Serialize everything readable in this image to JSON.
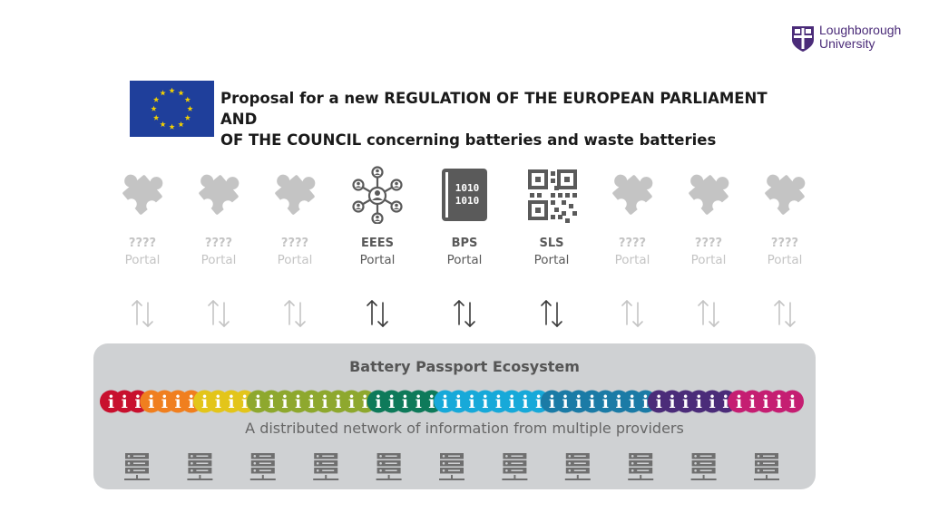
{
  "logo": {
    "line1": "Loughborough",
    "line2": "University",
    "color": "#4b2c79"
  },
  "title": {
    "line1": "Proposal for a new REGULATION OF THE EUROPEAN PARLIAMENT AND",
    "line2": "OF THE COUNCIL concerning batteries and waste batteries"
  },
  "eu_flag": {
    "background": "#1f3f9b",
    "star_color": "#f2d000",
    "stars": 12
  },
  "portals": [
    {
      "name": "????",
      "sub": "Portal",
      "icon": "puzzle-icon",
      "active": false
    },
    {
      "name": "????",
      "sub": "Portal",
      "icon": "puzzle-icon",
      "active": false
    },
    {
      "name": "????",
      "sub": "Portal",
      "icon": "puzzle-icon",
      "active": false
    },
    {
      "name": "EEES",
      "sub": "Portal",
      "icon": "network-icon",
      "active": true
    },
    {
      "name": "BPS",
      "sub": "Portal",
      "icon": "binary-book-icon",
      "active": true
    },
    {
      "name": "SLS",
      "sub": "Portal",
      "icon": "qr-code-icon",
      "active": true
    },
    {
      "name": "????",
      "sub": "Portal",
      "icon": "puzzle-icon",
      "active": false
    },
    {
      "name": "????",
      "sub": "Portal",
      "icon": "puzzle-icon",
      "active": false
    },
    {
      "name": "????",
      "sub": "Portal",
      "icon": "puzzle-icon",
      "active": false
    }
  ],
  "ecosystem": {
    "title": "Battery Passport Ecosystem",
    "subtitle": "A distributed network of information from multiple providers",
    "info_glyph": "i",
    "info_groups": [
      {
        "color": "#c8102e",
        "count": 3
      },
      {
        "color": "#f07f1f",
        "count": 4
      },
      {
        "color": "#e3c51a",
        "count": 4
      },
      {
        "color": "#8ea82e",
        "count": 9
      },
      {
        "color": "#0e7a5a",
        "count": 5
      },
      {
        "color": "#17a9d9",
        "count": 8
      },
      {
        "color": "#1b7ba6",
        "count": 8
      },
      {
        "color": "#4b2c79",
        "count": 6
      },
      {
        "color": "#c51e72",
        "count": 5
      }
    ],
    "server_count": 11,
    "colors": {
      "box": "#cfd1d3",
      "server": "#6f6f6f"
    }
  },
  "colors": {
    "inactive": "#c4c4c4",
    "active": "#5a5a5a"
  }
}
